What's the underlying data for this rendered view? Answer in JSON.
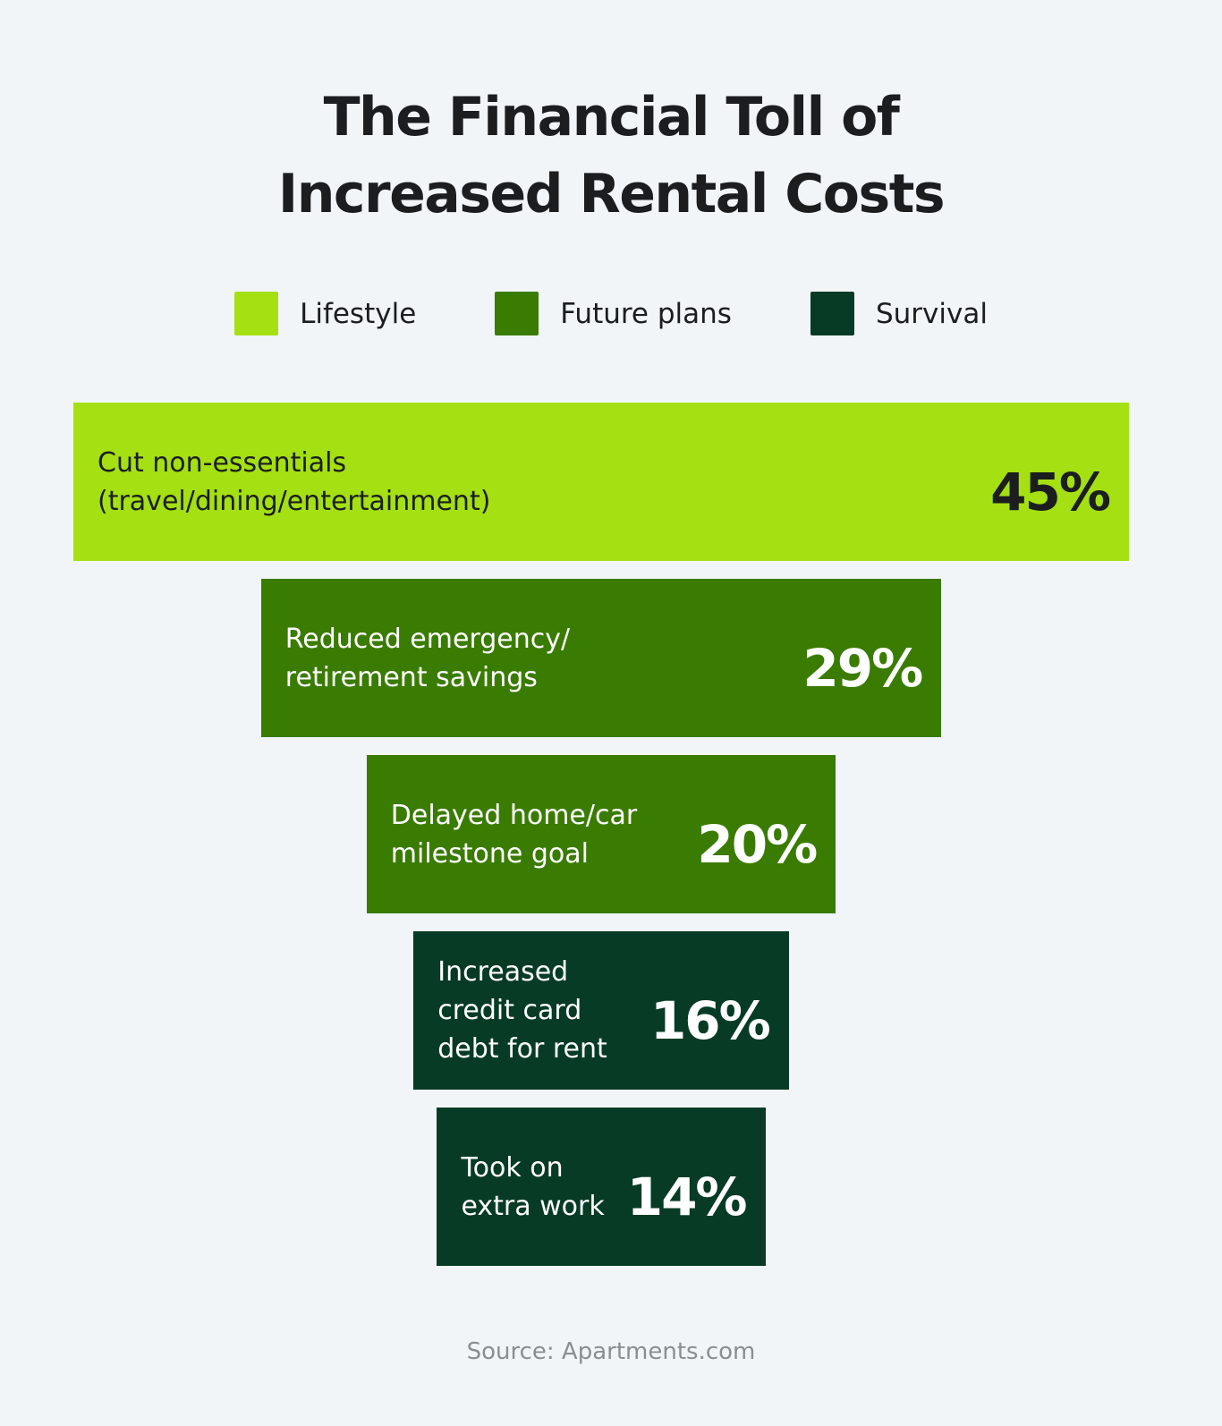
{
  "chart_data": {
    "type": "bar",
    "title": "The Financial Toll of\nIncreased Rental Costs",
    "legend": [
      {
        "name": "Lifestyle",
        "color": "#a4e012"
      },
      {
        "name": "Future plans",
        "color": "#3a7b02"
      },
      {
        "name": "Survival",
        "color": "#073b25"
      }
    ],
    "categories": [
      "Cut non-essentials\n(travel/dining/entertainment)",
      "Reduced emergency/\nretirement savings",
      "Delayed home/car\nmilestone goal",
      "Increased\ncredit card\ndebt for rent",
      "Took on\nextra work"
    ],
    "values": [
      45,
      29,
      20,
      16,
      14
    ],
    "value_labels": [
      "45%",
      "29%",
      "20%",
      "16%",
      "14%"
    ],
    "groups": [
      "Lifestyle",
      "Future plans",
      "Future plans",
      "Survival",
      "Survival"
    ],
    "legend_position": "top",
    "source": "Source: Apartments.com"
  }
}
